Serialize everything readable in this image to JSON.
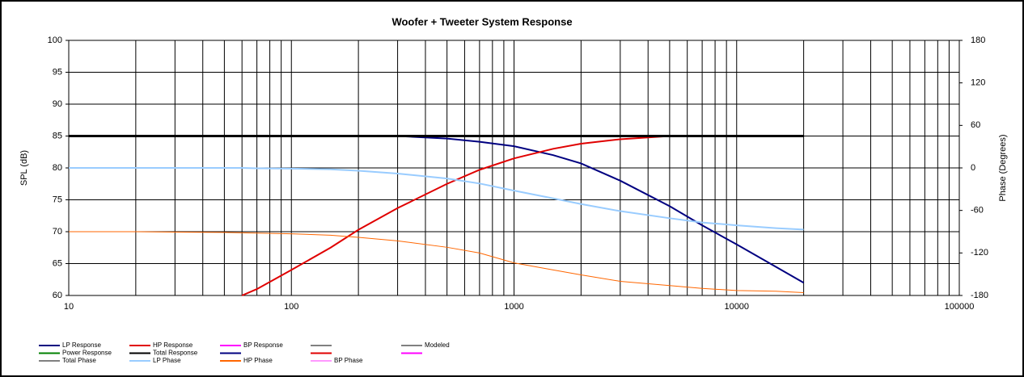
{
  "chart_data": {
    "type": "line",
    "title": "Woofer + Tweeter    System Response",
    "ylabel": "SPL (dB)",
    "y2label": "Phase (Degrees)",
    "xscale": "log",
    "xlim": [
      10,
      100000
    ],
    "xticks": [
      10,
      100,
      1000,
      10000,
      100000
    ],
    "ylim": [
      60,
      100
    ],
    "yticks": [
      60,
      65,
      70,
      75,
      80,
      85,
      90,
      95,
      100
    ],
    "y2lim": [
      -180,
      180
    ],
    "y2ticks": [
      -180,
      -120,
      -60,
      0,
      60,
      120,
      180
    ],
    "grid": true,
    "minor_grid": true,
    "x": [
      10,
      20,
      30,
      50,
      60,
      70,
      100,
      150,
      200,
      300,
      500,
      700,
      1000,
      1500,
      2000,
      3000,
      5000,
      7000,
      10000,
      15000,
      20000
    ],
    "series": [
      {
        "name": "LP Response",
        "color": "#000080",
        "width": 2,
        "values": [
          null,
          null,
          null,
          null,
          null,
          null,
          null,
          null,
          null,
          85,
          84.6,
          84.1,
          83.4,
          82,
          80.7,
          78,
          74,
          71,
          68,
          64.5,
          62
        ]
      },
      {
        "name": "HP Response",
        "color": "#e00000",
        "width": 2,
        "values": [
          null,
          null,
          null,
          null,
          60,
          61,
          64,
          67.5,
          70.3,
          73.7,
          77.5,
          79.7,
          81.5,
          83,
          83.8,
          84.5,
          85,
          null,
          null,
          null,
          null
        ]
      },
      {
        "name": "Total Response",
        "color": "#000000",
        "width": 3,
        "values": [
          85,
          85,
          85,
          85,
          85,
          85,
          85,
          85,
          85,
          85,
          85,
          85,
          85,
          85,
          85,
          85,
          85,
          85,
          85,
          85,
          85
        ]
      },
      {
        "name": "LP Phase",
        "color": "#99ccff",
        "width": 2,
        "axis": "y2",
        "values": [
          0,
          0,
          0,
          0,
          0,
          -0.5,
          -1,
          -2,
          -4,
          -8,
          -15,
          -22,
          -32,
          -43,
          -51,
          -61,
          -71,
          -77,
          -81,
          -85,
          -87
        ]
      },
      {
        "name": "HP Phase",
        "color": "#ff6600",
        "width": 1,
        "axis": "y2",
        "values": [
          -90,
          -90,
          -90.5,
          -91,
          -91.5,
          -92,
          -93,
          -95,
          -98,
          -103,
          -112,
          -120,
          -134,
          -144,
          -151,
          -160,
          -166,
          -170,
          -173,
          -174,
          -176
        ]
      }
    ],
    "legend_only": [
      {
        "name": "BP Response",
        "color": "#ff00ff"
      },
      {
        "name": "Modeled",
        "color": "#808080"
      },
      {
        "name": "Power Response",
        "color": "#008000"
      },
      {
        "name": "Total Phase",
        "color": "#808080"
      },
      {
        "name": "BP Phase",
        "color": "#ff99ff"
      }
    ]
  }
}
